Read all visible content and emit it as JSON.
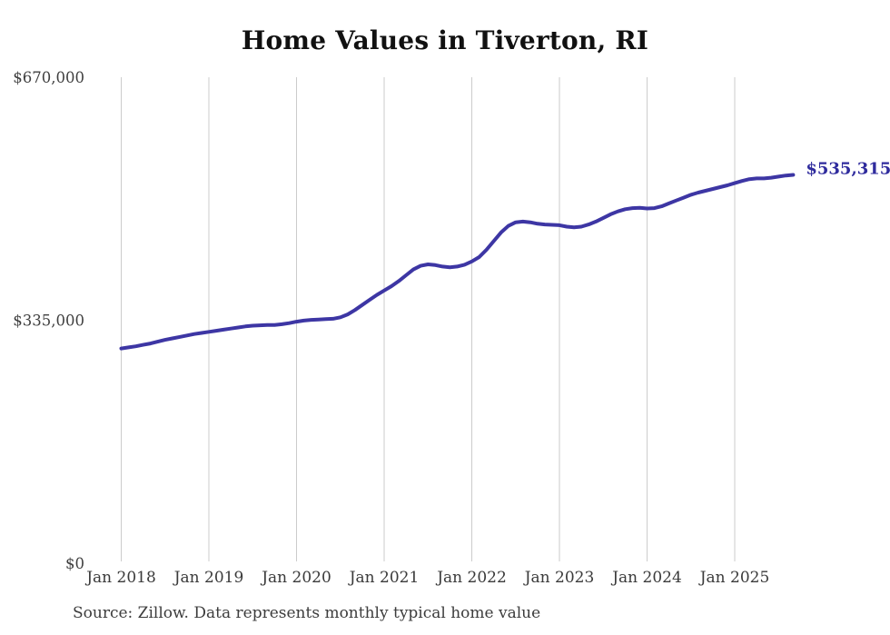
{
  "title": "Home Values in Tiverton, RI",
  "footer": {
    "source_note": "Source: Zillow. Data represents monthly typical home value"
  },
  "colors": {
    "line": "#3d36a4",
    "end_label": "#2f2b9d",
    "gridline": "#cccccc",
    "axis_text": "#3f3f3f",
    "title_text": "#111111"
  },
  "chart_data": {
    "type": "line",
    "title": "Home Values in Tiverton, RI",
    "xlabel": "",
    "ylabel": "",
    "ylim": [
      0,
      670000
    ],
    "grid": "vertical-only",
    "legend": "none",
    "end_label": "$535,315",
    "yticks": [
      {
        "value": 0,
        "label": "$0"
      },
      {
        "value": 335000,
        "label": "$335,000"
      },
      {
        "value": 670000,
        "label": "$670,000"
      }
    ],
    "xticks": [
      {
        "index": 0,
        "label": "Jan 2018"
      },
      {
        "index": 12,
        "label": "Jan 2019"
      },
      {
        "index": 24,
        "label": "Jan 2020"
      },
      {
        "index": 36,
        "label": "Jan 2021"
      },
      {
        "index": 48,
        "label": "Jan 2022"
      },
      {
        "index": 60,
        "label": "Jan 2023"
      },
      {
        "index": 72,
        "label": "Jan 2024"
      },
      {
        "index": 84,
        "label": "Jan 2025"
      }
    ],
    "x": [
      "2018-01",
      "2018-02",
      "2018-03",
      "2018-04",
      "2018-05",
      "2018-06",
      "2018-07",
      "2018-08",
      "2018-09",
      "2018-10",
      "2018-11",
      "2018-12",
      "2019-01",
      "2019-02",
      "2019-03",
      "2019-04",
      "2019-05",
      "2019-06",
      "2019-07",
      "2019-08",
      "2019-09",
      "2019-10",
      "2019-11",
      "2019-12",
      "2020-01",
      "2020-02",
      "2020-03",
      "2020-04",
      "2020-05",
      "2020-06",
      "2020-07",
      "2020-08",
      "2020-09",
      "2020-10",
      "2020-11",
      "2020-12",
      "2021-01",
      "2021-02",
      "2021-03",
      "2021-04",
      "2021-05",
      "2021-06",
      "2021-07",
      "2021-08",
      "2021-09",
      "2021-10",
      "2021-11",
      "2021-12",
      "2022-01",
      "2022-02",
      "2022-03",
      "2022-04",
      "2022-05",
      "2022-06",
      "2022-07",
      "2022-08",
      "2022-09",
      "2022-10",
      "2022-11",
      "2022-12",
      "2023-01",
      "2023-02",
      "2023-03",
      "2023-04",
      "2023-05",
      "2023-06",
      "2023-07",
      "2023-08",
      "2023-09",
      "2023-10",
      "2023-11",
      "2023-12",
      "2024-01",
      "2024-02",
      "2024-03",
      "2024-04",
      "2024-05",
      "2024-06",
      "2024-07",
      "2024-08",
      "2024-09",
      "2024-10",
      "2024-11",
      "2024-12",
      "2025-01",
      "2025-02",
      "2025-03",
      "2025-04",
      "2025-05",
      "2025-06",
      "2025-07",
      "2025-08",
      "2025-09"
    ],
    "values": [
      296000,
      297500,
      299000,
      301000,
      303000,
      305500,
      308000,
      310000,
      312000,
      314000,
      316000,
      317500,
      319000,
      320500,
      322000,
      323500,
      325000,
      326500,
      327500,
      328000,
      328500,
      328500,
      329500,
      331000,
      333000,
      334500,
      335500,
      336000,
      336500,
      337000,
      339000,
      343000,
      349000,
      356000,
      363000,
      370000,
      376000,
      382000,
      389000,
      397000,
      405000,
      410000,
      412000,
      411000,
      409000,
      408000,
      409000,
      411500,
      416000,
      422000,
      432000,
      444000,
      456000,
      465000,
      470000,
      471000,
      470000,
      468000,
      467000,
      466500,
      466000,
      464000,
      463000,
      464000,
      467000,
      471000,
      476000,
      481000,
      485000,
      488000,
      489500,
      490000,
      489000,
      489500,
      492000,
      496000,
      500000,
      504000,
      508000,
      511000,
      513500,
      516000,
      518500,
      521000,
      524000,
      527000,
      529500,
      530500,
      530500,
      531500,
      533000,
      534500,
      535315
    ]
  }
}
